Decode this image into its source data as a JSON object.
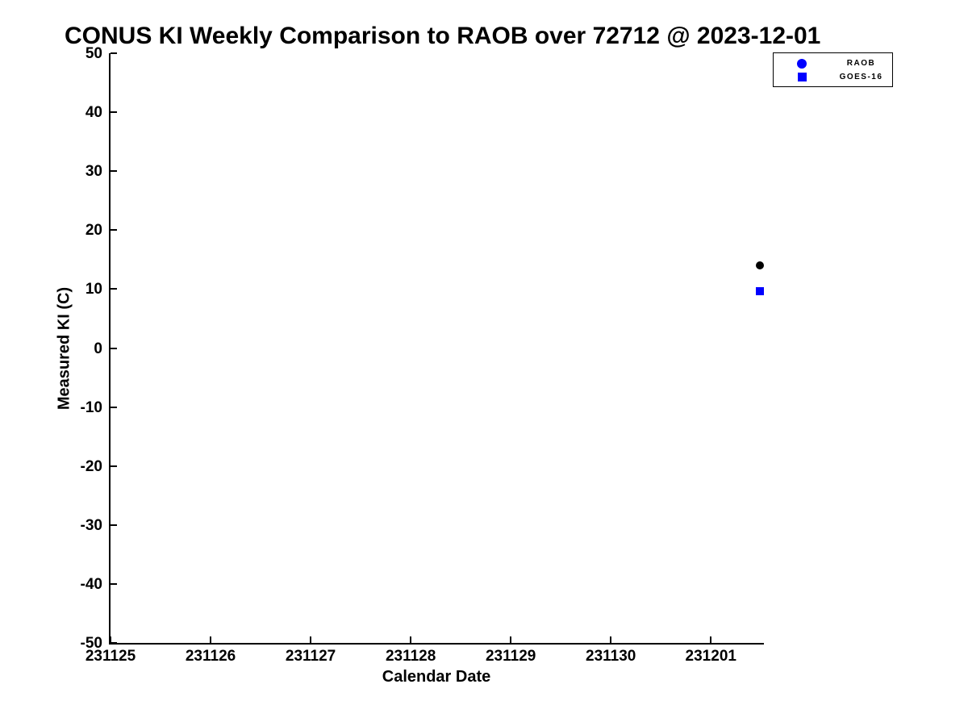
{
  "chart_data": {
    "type": "scatter",
    "title": "CONUS KI Weekly Comparison to RAOB over 72712 @ 2023-12-01",
    "xlabel": "Calendar Date",
    "ylabel": "Measured KI (C)",
    "ylim": [
      -50,
      50
    ],
    "yticks": [
      50,
      40,
      30,
      20,
      10,
      0,
      -10,
      -20,
      -30,
      -40,
      -50
    ],
    "xtick_labels": [
      "231125",
      "231126",
      "231127",
      "231128",
      "231129",
      "231130",
      "231201"
    ],
    "x_axis": {
      "tick_day_indices": [
        0,
        1,
        2,
        3,
        4,
        5,
        6
      ],
      "day_span": 6.53
    },
    "grid": false,
    "background": "#ffffff",
    "axis_color": "#000000",
    "legend": {
      "position": "outside-top-right",
      "entries": [
        {
          "label": "RAOB",
          "marker": "circle",
          "color": "#0000ff"
        },
        {
          "label": "GOES-16",
          "marker": "square",
          "color": "#0000ff"
        }
      ]
    },
    "series": [
      {
        "name": "RAOB",
        "marker": "circle",
        "color": "#000000",
        "points": [
          {
            "x_day": 6.49,
            "y": 14.0
          }
        ]
      },
      {
        "name": "GOES-16",
        "marker": "square",
        "color": "#0000ff",
        "points": [
          {
            "x_day": 6.49,
            "y": 9.6
          }
        ]
      }
    ]
  }
}
